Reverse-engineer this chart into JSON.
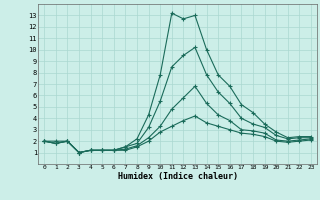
{
  "xlabel": "Humidex (Indice chaleur)",
  "bg_color": "#cceee8",
  "grid_color": "#aad8d0",
  "line_color": "#1a6b5a",
  "xlim": [
    -0.5,
    23.5
  ],
  "ylim": [
    0,
    14
  ],
  "xticks": [
    0,
    1,
    2,
    3,
    4,
    5,
    6,
    7,
    8,
    9,
    10,
    11,
    12,
    13,
    14,
    15,
    16,
    17,
    18,
    19,
    20,
    21,
    22,
    23
  ],
  "yticks": [
    1,
    2,
    3,
    4,
    5,
    6,
    7,
    8,
    9,
    10,
    11,
    12,
    13
  ],
  "series": [
    [
      2.0,
      2.0,
      2.0,
      1.0,
      1.2,
      1.2,
      1.2,
      1.5,
      2.2,
      4.3,
      7.8,
      13.2,
      12.7,
      13.0,
      10.0,
      7.8,
      6.8,
      5.2,
      4.5,
      3.5,
      2.8,
      2.3,
      2.4,
      2.4
    ],
    [
      2.0,
      1.8,
      2.0,
      1.0,
      1.2,
      1.2,
      1.2,
      1.5,
      1.8,
      3.2,
      5.5,
      8.5,
      9.5,
      10.2,
      7.8,
      6.3,
      5.3,
      4.0,
      3.5,
      3.2,
      2.5,
      2.2,
      2.3,
      2.3
    ],
    [
      2.0,
      1.8,
      2.0,
      1.0,
      1.2,
      1.2,
      1.2,
      1.3,
      1.6,
      2.3,
      3.3,
      4.8,
      5.8,
      6.8,
      5.3,
      4.3,
      3.8,
      3.0,
      2.9,
      2.7,
      2.1,
      2.0,
      2.1,
      2.2
    ],
    [
      2.0,
      1.8,
      2.0,
      1.0,
      1.2,
      1.2,
      1.2,
      1.2,
      1.5,
      2.0,
      2.8,
      3.3,
      3.8,
      4.2,
      3.6,
      3.3,
      3.0,
      2.7,
      2.6,
      2.4,
      2.0,
      1.9,
      2.0,
      2.1
    ]
  ]
}
